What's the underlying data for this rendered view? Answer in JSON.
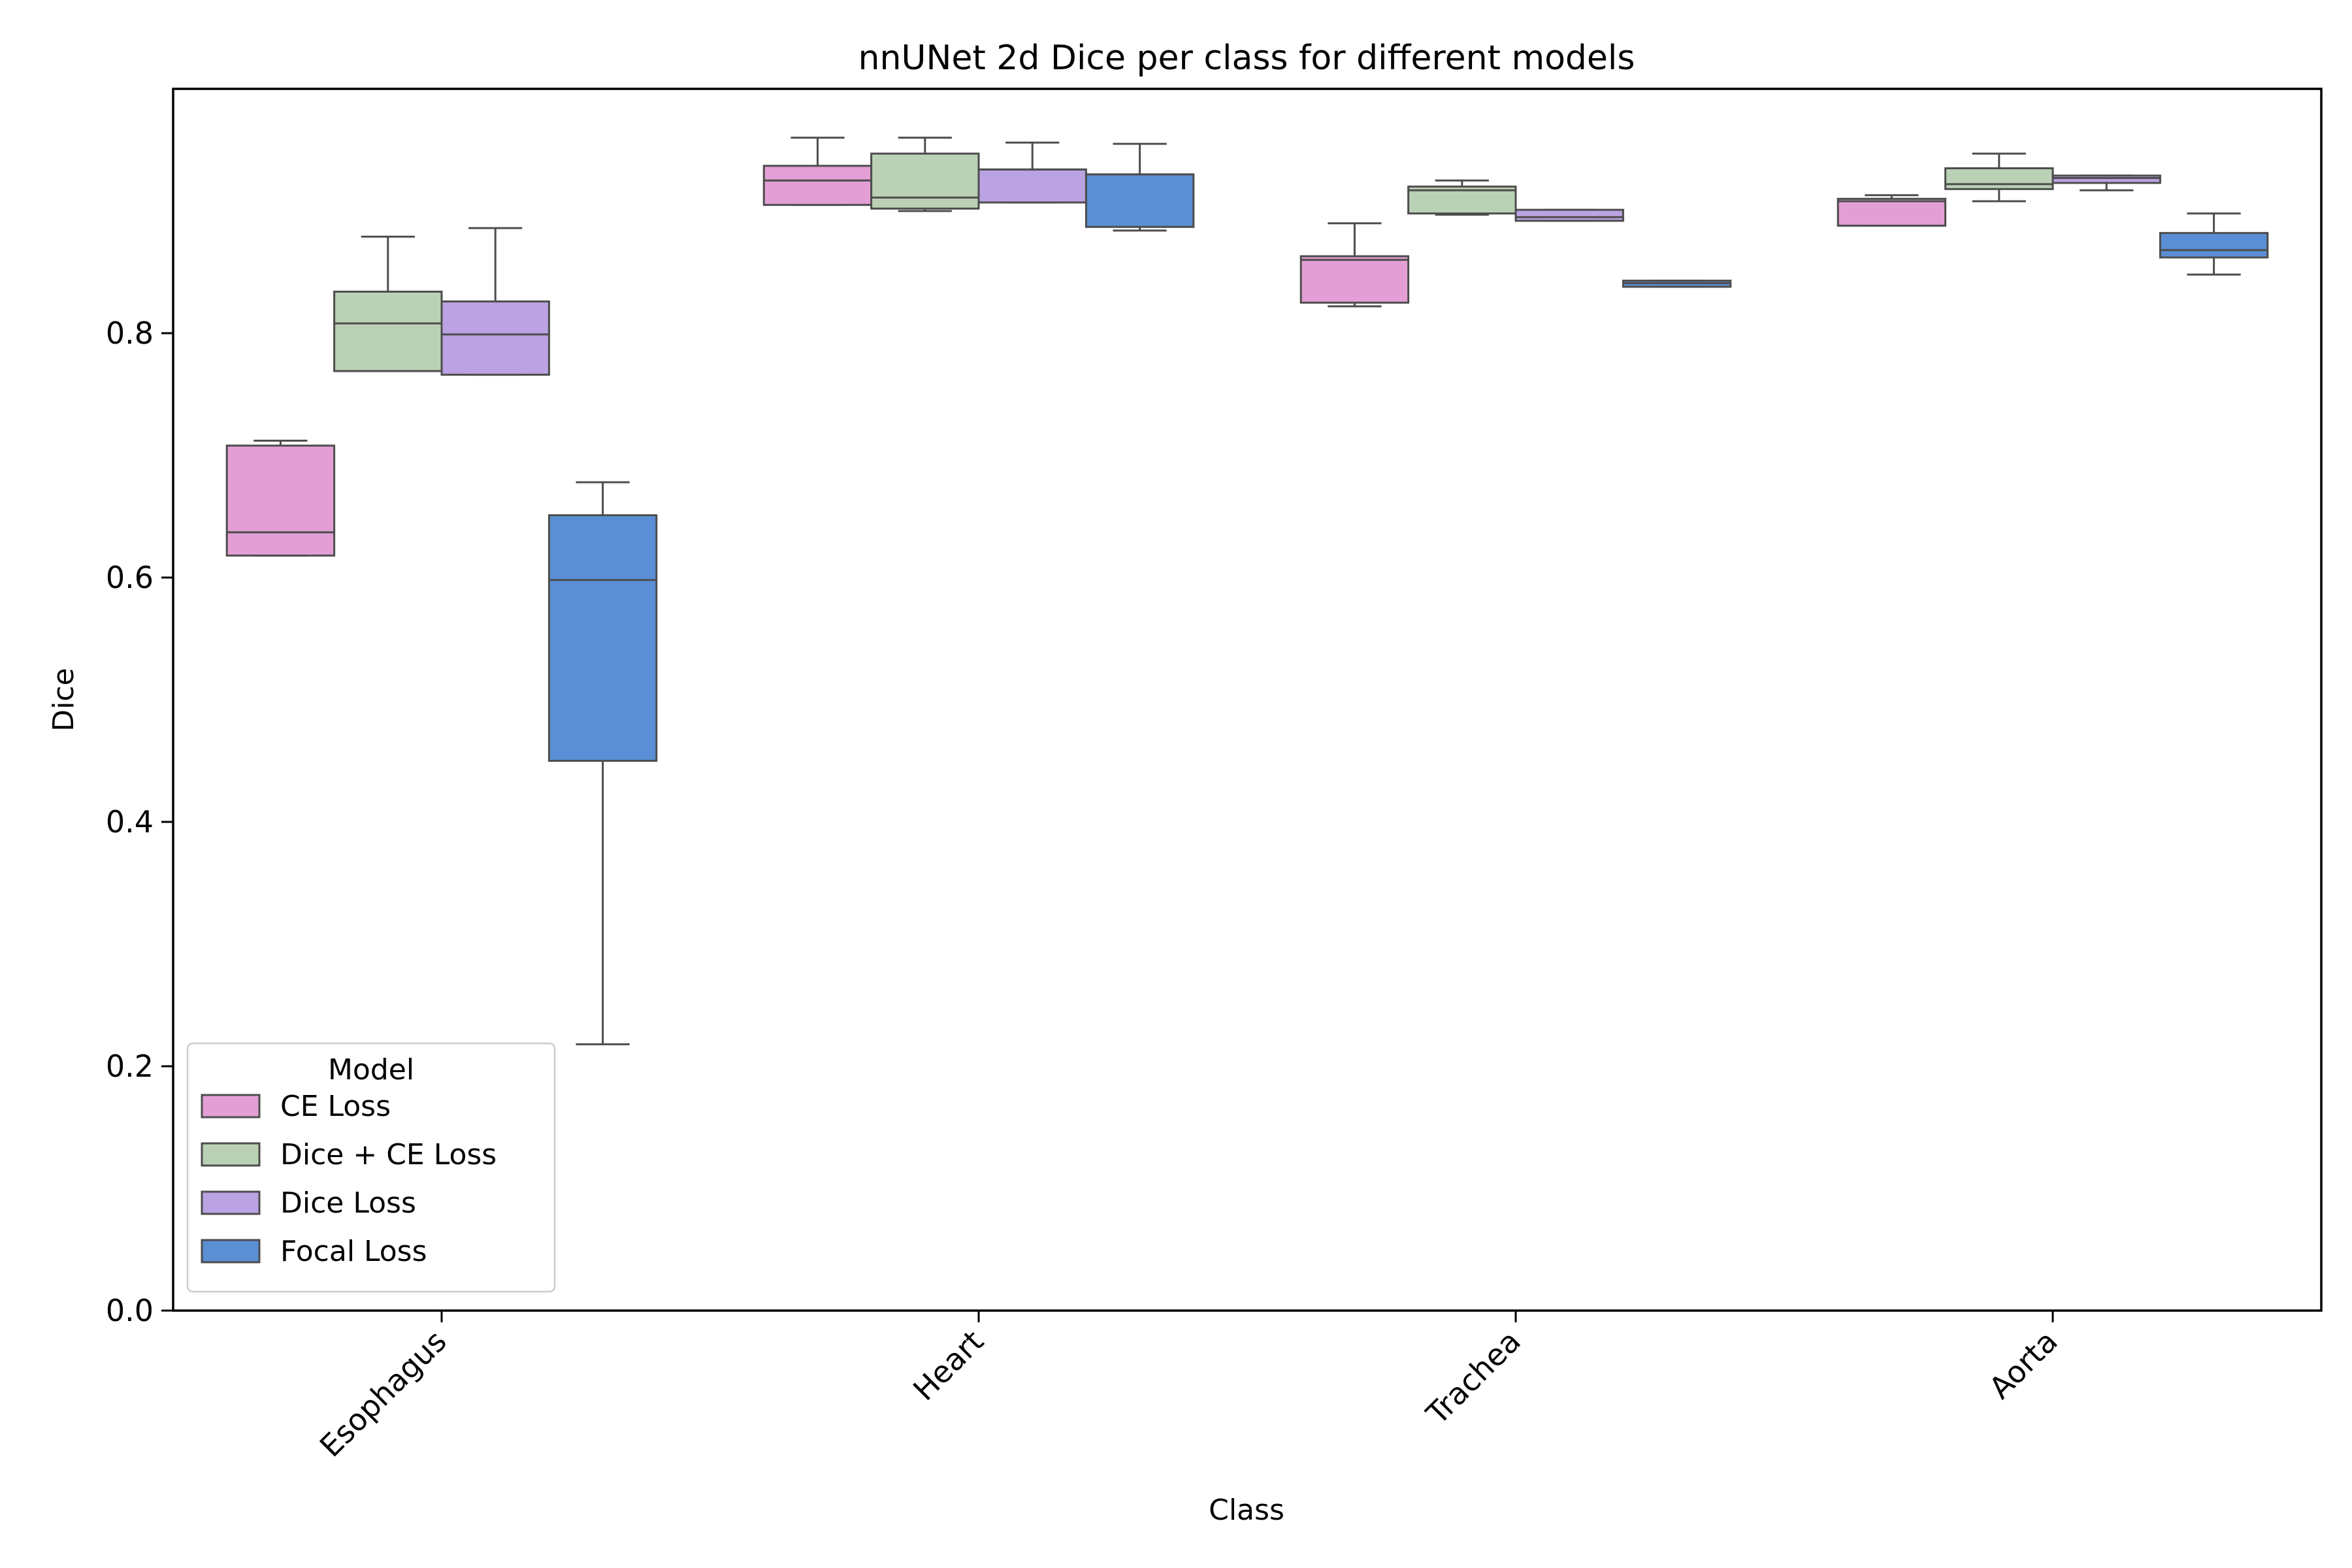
{
  "chart_data": {
    "type": "box",
    "title": "nnUNet 2d Dice per class for different models",
    "xlabel": "Class",
    "ylabel": "Dice",
    "ylim": [
      0,
      1.0
    ],
    "yticks": [
      "0.0",
      "0.2",
      "0.4",
      "0.6",
      "0.8"
    ],
    "yticks_values": [
      0,
      0.2,
      0.4,
      0.6,
      0.8
    ],
    "categories": [
      "Esophagus",
      "Heart",
      "Trachea",
      "Aorta"
    ],
    "legend": {
      "title": "Model",
      "placement": "lower-left"
    },
    "series": [
      {
        "name": "CE Loss",
        "color": "#e39fd5",
        "boxes": [
          {
            "min": 0.618,
            "q1": 0.618,
            "median": 0.637,
            "q3": 0.708,
            "max": 0.712
          },
          {
            "min": 0.905,
            "q1": 0.905,
            "median": 0.925,
            "q3": 0.937,
            "max": 0.96
          },
          {
            "min": 0.822,
            "q1": 0.825,
            "median": 0.86,
            "q3": 0.863,
            "max": 0.89
          },
          {
            "min": 0.888,
            "q1": 0.888,
            "median": 0.908,
            "q3": 0.91,
            "max": 0.913
          }
        ]
      },
      {
        "name": "Dice + CE Loss",
        "color": "#bbd1b5",
        "boxes": [
          {
            "min": 0.769,
            "q1": 0.769,
            "median": 0.808,
            "q3": 0.834,
            "max": 0.879
          },
          {
            "min": 0.9,
            "q1": 0.902,
            "median": 0.911,
            "q3": 0.947,
            "max": 0.96
          },
          {
            "min": 0.897,
            "q1": 0.898,
            "median": 0.917,
            "q3": 0.92,
            "max": 0.925
          },
          {
            "min": 0.908,
            "q1": 0.918,
            "median": 0.922,
            "q3": 0.935,
            "max": 0.947
          }
        ]
      },
      {
        "name": "Dice Loss",
        "color": "#bba2e2",
        "boxes": [
          {
            "min": 0.766,
            "q1": 0.766,
            "median": 0.799,
            "q3": 0.826,
            "max": 0.886
          },
          {
            "min": 0.907,
            "q1": 0.907,
            "median": 0.934,
            "q3": 0.934,
            "max": 0.956
          },
          {
            "min": 0.892,
            "q1": 0.892,
            "median": 0.895,
            "q3": 0.901,
            "max": 0.901
          },
          {
            "min": 0.917,
            "q1": 0.923,
            "median": 0.927,
            "q3": 0.929,
            "max": 0.929
          }
        ]
      },
      {
        "name": "Focal Loss",
        "color": "#5b8fd5",
        "boxes": [
          {
            "min": 0.218,
            "q1": 0.45,
            "median": 0.598,
            "q3": 0.651,
            "max": 0.678
          },
          {
            "min": 0.884,
            "q1": 0.887,
            "median": 0.93,
            "q3": 0.93,
            "max": 0.955
          },
          {
            "min": 0.838,
            "q1": 0.838,
            "median": 0.841,
            "q3": 0.843,
            "max": 0.843
          },
          {
            "min": 0.848,
            "q1": 0.862,
            "median": 0.868,
            "q3": 0.882,
            "max": 0.898
          }
        ]
      }
    ]
  }
}
